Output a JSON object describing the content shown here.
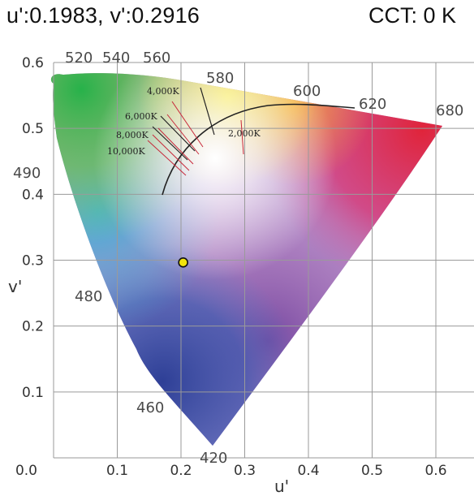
{
  "header": {
    "coordinates": "u':0.1983, v':0.2916",
    "cct": "CCT: 0 K"
  },
  "chart_data": {
    "type": "scatter",
    "xlabel": "u'",
    "ylabel": "v'",
    "xlim": [
      0,
      0.65
    ],
    "ylim": [
      0,
      0.6
    ],
    "x_ticks": [
      "0.0",
      "0.1",
      "0.2",
      "0.3",
      "0.4",
      "0.5",
      "0.6"
    ],
    "y_ticks": [
      "0.0",
      "0.1",
      "0.2",
      "0.3",
      "0.4",
      "0.5",
      "0.6"
    ],
    "grid": true,
    "spectral_locus_labels": [
      "520",
      "540",
      "560",
      "580",
      "600",
      "620",
      "680",
      "490",
      "480",
      "460",
      "420"
    ],
    "cct_labels": [
      "4,000K",
      "6,000K",
      "8,000K",
      "10,000K",
      "2,000K"
    ],
    "point": {
      "u": 0.1983,
      "v": 0.2916,
      "color": "#f2e40c"
    }
  }
}
